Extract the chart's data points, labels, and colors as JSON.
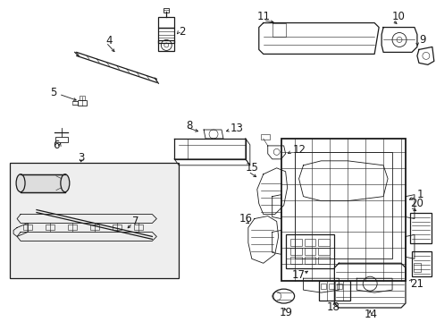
{
  "bg_color": "#ffffff",
  "line_color": "#1a1a1a",
  "fig_width": 4.89,
  "fig_height": 3.6,
  "dpi": 100,
  "label_fontsize": 8.5,
  "lw_thick": 1.3,
  "lw_med": 0.9,
  "lw_thin": 0.6,
  "lw_detail": 0.4
}
